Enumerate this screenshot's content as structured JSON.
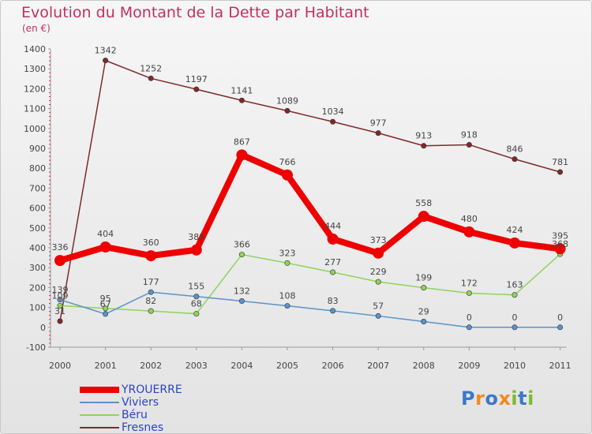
{
  "title": "Evolution du Montant de la Dette par Habitant",
  "unit": "(en €)",
  "logo": {
    "letters": [
      "P",
      "r",
      "o",
      "x",
      "i",
      "t",
      "i"
    ],
    "colors": [
      "#3b79c9",
      "#f08a1d",
      "#3b79c9",
      "#f08a1d",
      "#7bbd2a",
      "#3b79c9",
      "#7bbd2a"
    ]
  },
  "chart_data": {
    "type": "line",
    "x": [
      "2000",
      "2001",
      "2002",
      "2003",
      "2004",
      "2005",
      "2006",
      "2007",
      "2008",
      "2009",
      "2010",
      "2011"
    ],
    "ylim": [
      -100,
      1400
    ],
    "yticks": [
      -100,
      0,
      100,
      200,
      300,
      400,
      500,
      600,
      700,
      800,
      900,
      1000,
      1100,
      1200,
      1300,
      1400
    ],
    "grid": false,
    "legend": "bottom-left",
    "series": [
      {
        "name": "YROUERRE",
        "color": "#ee0000",
        "values": [
          336,
          404,
          360,
          389,
          867,
          766,
          444,
          373,
          558,
          480,
          424,
          395
        ],
        "labels": [
          "336",
          "404",
          "360",
          "389",
          "867",
          "766",
          "444",
          "373",
          "558",
          "480",
          "424",
          "395"
        ]
      },
      {
        "name": "Viviers",
        "color": "#5a93c8",
        "values": [
          139,
          67,
          177,
          155,
          132,
          108,
          83,
          57,
          29,
          0,
          0,
          0
        ],
        "labels": [
          "139",
          "67",
          "177",
          "155",
          "132",
          "108",
          "83",
          "57",
          "29",
          "0",
          "0",
          "0"
        ]
      },
      {
        "name": "Béru",
        "color": "#8fd35b",
        "values": [
          109,
          95,
          82,
          68,
          366,
          323,
          277,
          229,
          199,
          172,
          163,
          368
        ],
        "labels": [
          "109",
          "95",
          "82",
          "68",
          "366",
          "323",
          "277",
          "229",
          "199",
          "172",
          "163",
          "368"
        ]
      },
      {
        "name": "Fresnes",
        "color": "#7f2a2a",
        "values": [
          31,
          1342,
          1252,
          1197,
          1141,
          1089,
          1034,
          977,
          913,
          918,
          846,
          781
        ],
        "labels": [
          "31",
          "1342",
          "1252",
          "1197",
          "1141",
          "1089",
          "1034",
          "977",
          "913",
          "918",
          "846",
          "781"
        ]
      }
    ]
  }
}
